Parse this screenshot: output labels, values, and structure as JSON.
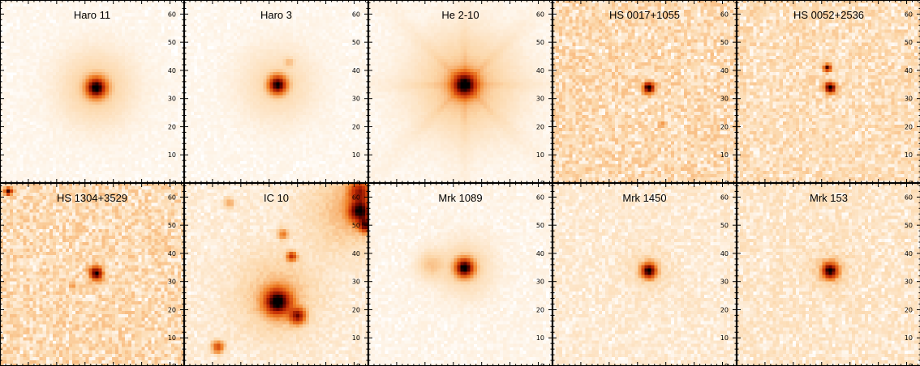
{
  "figure": {
    "colormap": "white-orange-red-black heat",
    "axis_range": [
      0,
      65
    ],
    "axis_ticks": [
      "0",
      "10",
      "20",
      "30",
      "40",
      "50",
      "60"
    ],
    "panels": [
      {
        "title": "Haro 11",
        "sources": [
          {
            "x": 34,
            "y": 34,
            "peak": 1.0,
            "sigma": 2.2
          },
          {
            "x": 34,
            "y": 34,
            "peak": 0.1,
            "sigma": 8
          }
        ],
        "noise": 0.01,
        "rays": false
      },
      {
        "title": "Haro 3",
        "sources": [
          {
            "x": 33,
            "y": 35,
            "peak": 0.95,
            "sigma": 2.0
          },
          {
            "x": 33,
            "y": 35,
            "peak": 0.07,
            "sigma": 8
          },
          {
            "x": 37,
            "y": 43,
            "peak": 0.1,
            "sigma": 1.1
          }
        ],
        "noise": 0.01,
        "rays": false
      },
      {
        "title": "He 2-10",
        "sources": [
          {
            "x": 34,
            "y": 35,
            "peak": 1.0,
            "sigma": 2.8
          },
          {
            "x": 34,
            "y": 35,
            "peak": 0.13,
            "sigma": 11
          }
        ],
        "noise": 0.01,
        "rays": true
      },
      {
        "title": "HS 0017+1055",
        "sources": [
          {
            "x": 34,
            "y": 34,
            "peak": 0.95,
            "sigma": 1.3
          },
          {
            "x": 39,
            "y": 21,
            "peak": 0.12,
            "sigma": 1.0
          }
        ],
        "noise": 0.13,
        "rays": false
      },
      {
        "title": "HS 0052+2536",
        "sources": [
          {
            "x": 33,
            "y": 34,
            "peak": 0.95,
            "sigma": 1.3
          },
          {
            "x": 32,
            "y": 41,
            "peak": 0.8,
            "sigma": 0.9
          }
        ],
        "noise": 0.11,
        "rays": false
      },
      {
        "title": "HS 1304+3529",
        "sources": [
          {
            "x": 34,
            "y": 33,
            "peak": 0.95,
            "sigma": 1.5
          },
          {
            "x": 3,
            "y": 62,
            "peak": 0.85,
            "sigma": 0.9
          },
          {
            "x": 26,
            "y": 29,
            "peak": 0.1,
            "sigma": 1.2
          }
        ],
        "noise": 0.13,
        "rays": false
      },
      {
        "title": "IC 10",
        "sources": [
          {
            "x": 33,
            "y": 23,
            "peak": 1.0,
            "sigma": 3.0
          },
          {
            "x": 40,
            "y": 18,
            "peak": 0.7,
            "sigma": 1.8
          },
          {
            "x": 62,
            "y": 55,
            "peak": 0.9,
            "sigma": 2.6
          },
          {
            "x": 62,
            "y": 62,
            "peak": 0.6,
            "sigma": 2.6
          },
          {
            "x": 64,
            "y": 50,
            "peak": 0.7,
            "sigma": 1.6
          },
          {
            "x": 38,
            "y": 39,
            "peak": 0.55,
            "sigma": 1.1
          },
          {
            "x": 35,
            "y": 47,
            "peak": 0.3,
            "sigma": 1.2
          },
          {
            "x": 12,
            "y": 7,
            "peak": 0.45,
            "sigma": 1.4
          },
          {
            "x": 16,
            "y": 58,
            "peak": 0.18,
            "sigma": 1.2
          },
          {
            "x": 33,
            "y": 25,
            "peak": 0.12,
            "sigma": 9
          },
          {
            "x": 58,
            "y": 55,
            "peak": 0.12,
            "sigma": 9
          }
        ],
        "noise": 0.04,
        "rays": false
      },
      {
        "title": "Mrk 1089",
        "sources": [
          {
            "x": 34,
            "y": 35,
            "peak": 1.0,
            "sigma": 2.0
          },
          {
            "x": 34,
            "y": 35,
            "peak": 0.09,
            "sigma": 6
          },
          {
            "x": 22,
            "y": 36,
            "peak": 0.1,
            "sigma": 3
          }
        ],
        "noise": 0.015,
        "rays": false
      },
      {
        "title": "Mrk 1450",
        "sources": [
          {
            "x": 34,
            "y": 34,
            "peak": 0.95,
            "sigma": 1.7
          },
          {
            "x": 34,
            "y": 34,
            "peak": 0.05,
            "sigma": 5
          }
        ],
        "noise": 0.05,
        "rays": false
      },
      {
        "title": "Mrk 153",
        "sources": [
          {
            "x": 33,
            "y": 34,
            "peak": 0.95,
            "sigma": 1.8
          },
          {
            "x": 33,
            "y": 34,
            "peak": 0.05,
            "sigma": 5
          }
        ],
        "noise": 0.07,
        "rays": false
      }
    ]
  }
}
